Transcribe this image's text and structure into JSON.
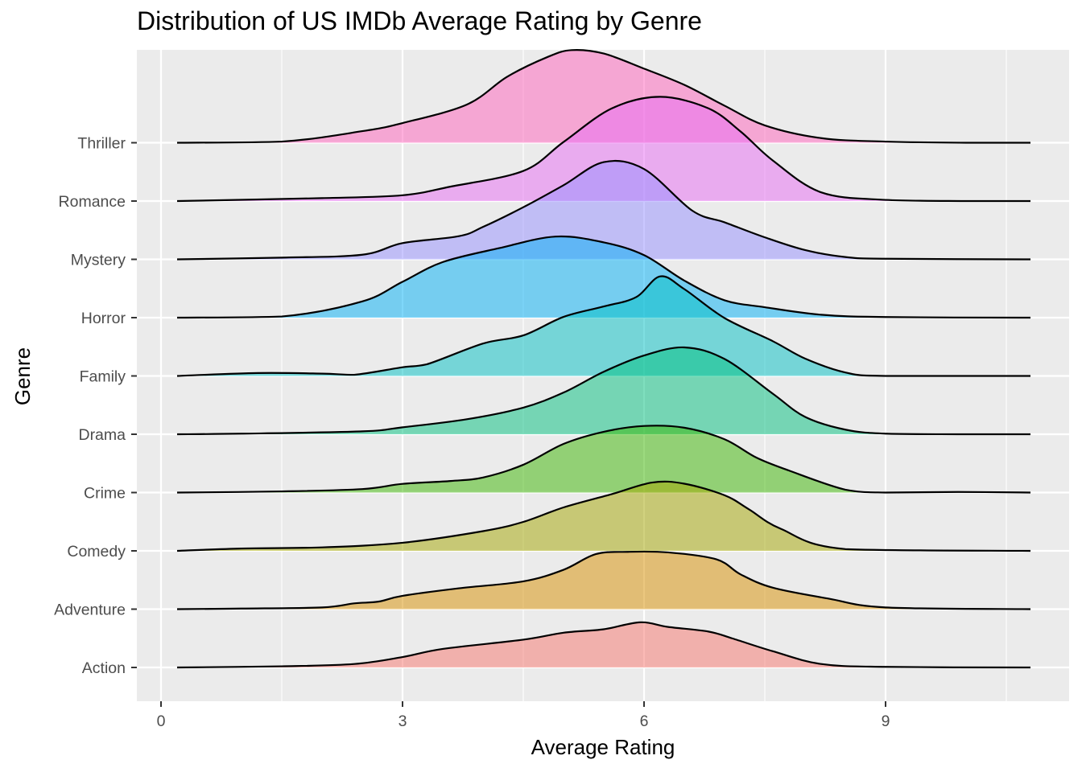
{
  "chart_data": {
    "type": "ridgeline",
    "title": "Distribution of US IMDb Average Rating by Genre",
    "xlabel": "Average Rating",
    "ylabel": "Genre",
    "xlim": [
      -0.3,
      11.3
    ],
    "xticks": [
      0,
      3,
      6,
      9
    ],
    "grid": true,
    "legend": "none",
    "series": [
      {
        "name": "Action",
        "color": "#F8766D",
        "points": [
          [
            0.2,
            0.0
          ],
          [
            1.5,
            0.02
          ],
          [
            2.4,
            0.06
          ],
          [
            3.0,
            0.18
          ],
          [
            3.5,
            0.32
          ],
          [
            4.5,
            0.48
          ],
          [
            5.0,
            0.6
          ],
          [
            5.5,
            0.66
          ],
          [
            5.95,
            0.78
          ],
          [
            6.3,
            0.7
          ],
          [
            6.8,
            0.62
          ],
          [
            7.1,
            0.5
          ],
          [
            7.6,
            0.28
          ],
          [
            8.2,
            0.06
          ],
          [
            9.0,
            0.01
          ],
          [
            10.8,
            0.0
          ]
        ]
      },
      {
        "name": "Adventure",
        "color": "#D89000",
        "points": [
          [
            0.2,
            0.0
          ],
          [
            1.0,
            0.01
          ],
          [
            2.0,
            0.03
          ],
          [
            2.4,
            0.1
          ],
          [
            2.7,
            0.13
          ],
          [
            3.0,
            0.23
          ],
          [
            3.7,
            0.36
          ],
          [
            4.5,
            0.48
          ],
          [
            5.0,
            0.68
          ],
          [
            5.4,
            0.95
          ],
          [
            5.8,
            0.99
          ],
          [
            6.3,
            0.98
          ],
          [
            6.9,
            0.86
          ],
          [
            7.2,
            0.6
          ],
          [
            7.6,
            0.37
          ],
          [
            8.3,
            0.18
          ],
          [
            9.0,
            0.03
          ],
          [
            10.8,
            0.0
          ]
        ]
      },
      {
        "name": "Comedy",
        "color": "#A3A500",
        "points": [
          [
            0.2,
            0.0
          ],
          [
            1.0,
            0.04
          ],
          [
            2.0,
            0.06
          ],
          [
            3.0,
            0.14
          ],
          [
            4.0,
            0.34
          ],
          [
            4.5,
            0.5
          ],
          [
            5.0,
            0.75
          ],
          [
            5.6,
            0.98
          ],
          [
            6.1,
            1.18
          ],
          [
            6.5,
            1.16
          ],
          [
            7.0,
            0.96
          ],
          [
            7.3,
            0.72
          ],
          [
            7.7,
            0.38
          ],
          [
            8.5,
            0.03
          ],
          [
            10.8,
            0.0
          ]
        ]
      },
      {
        "name": "Crime",
        "color": "#39B600",
        "points": [
          [
            0.2,
            0.0
          ],
          [
            1.5,
            0.02
          ],
          [
            2.5,
            0.06
          ],
          [
            3.0,
            0.15
          ],
          [
            3.6,
            0.2
          ],
          [
            4.0,
            0.26
          ],
          [
            4.5,
            0.48
          ],
          [
            5.0,
            0.84
          ],
          [
            5.5,
            1.05
          ],
          [
            6.0,
            1.15
          ],
          [
            6.5,
            1.12
          ],
          [
            7.0,
            0.92
          ],
          [
            7.4,
            0.6
          ],
          [
            7.8,
            0.38
          ],
          [
            8.5,
            0.05
          ],
          [
            9.0,
            0.0
          ],
          [
            9.9,
            0.01
          ],
          [
            10.8,
            0.0
          ]
        ]
      },
      {
        "name": "Drama",
        "color": "#00BF7D",
        "points": [
          [
            0.2,
            0.0
          ],
          [
            1.0,
            0.01
          ],
          [
            2.5,
            0.05
          ],
          [
            3.0,
            0.12
          ],
          [
            3.8,
            0.26
          ],
          [
            4.5,
            0.46
          ],
          [
            5.0,
            0.72
          ],
          [
            5.5,
            1.08
          ],
          [
            6.0,
            1.36
          ],
          [
            6.5,
            1.5
          ],
          [
            7.0,
            1.3
          ],
          [
            7.6,
            0.7
          ],
          [
            8.0,
            0.3
          ],
          [
            8.5,
            0.08
          ],
          [
            9.0,
            0.01
          ],
          [
            9.9,
            0.0
          ],
          [
            10.8,
            0.0
          ]
        ]
      },
      {
        "name": "Family",
        "color": "#00BFC4",
        "points": [
          [
            0.2,
            0.0
          ],
          [
            1.2,
            0.05
          ],
          [
            2.0,
            0.04
          ],
          [
            2.4,
            0.02
          ],
          [
            3.0,
            0.15
          ],
          [
            3.3,
            0.2
          ],
          [
            4.0,
            0.56
          ],
          [
            4.5,
            0.7
          ],
          [
            5.0,
            1.02
          ],
          [
            5.5,
            1.2
          ],
          [
            5.9,
            1.36
          ],
          [
            6.2,
            1.72
          ],
          [
            6.5,
            1.5
          ],
          [
            7.0,
            1.0
          ],
          [
            7.6,
            0.6
          ],
          [
            8.0,
            0.3
          ],
          [
            8.5,
            0.06
          ],
          [
            9.0,
            0.0
          ],
          [
            10.8,
            0.0
          ]
        ]
      },
      {
        "name": "Horror",
        "color": "#00B0F6",
        "points": [
          [
            0.2,
            0.0
          ],
          [
            1.5,
            0.02
          ],
          [
            2.5,
            0.28
          ],
          [
            3.0,
            0.62
          ],
          [
            3.5,
            0.96
          ],
          [
            4.2,
            1.2
          ],
          [
            4.9,
            1.4
          ],
          [
            5.5,
            1.3
          ],
          [
            6.0,
            1.08
          ],
          [
            6.5,
            0.64
          ],
          [
            7.0,
            0.3
          ],
          [
            7.5,
            0.18
          ],
          [
            8.2,
            0.05
          ],
          [
            9.0,
            0.01
          ],
          [
            10.8,
            0.0
          ]
        ]
      },
      {
        "name": "Mystery",
        "color": "#9590FF",
        "points": [
          [
            0.2,
            0.0
          ],
          [
            1.5,
            0.03
          ],
          [
            2.5,
            0.08
          ],
          [
            3.0,
            0.28
          ],
          [
            3.7,
            0.4
          ],
          [
            4.0,
            0.56
          ],
          [
            4.5,
            0.9
          ],
          [
            5.0,
            1.28
          ],
          [
            5.5,
            1.68
          ],
          [
            6.0,
            1.56
          ],
          [
            6.6,
            0.84
          ],
          [
            7.0,
            0.64
          ],
          [
            7.5,
            0.38
          ],
          [
            8.0,
            0.16
          ],
          [
            8.5,
            0.04
          ],
          [
            9.0,
            0.01
          ],
          [
            10.8,
            0.0
          ]
        ]
      },
      {
        "name": "Romance",
        "color": "#E76BF3",
        "points": [
          [
            0.2,
            0.0
          ],
          [
            2.0,
            0.05
          ],
          [
            3.0,
            0.1
          ],
          [
            3.6,
            0.25
          ],
          [
            4.5,
            0.52
          ],
          [
            5.0,
            1.02
          ],
          [
            5.6,
            1.6
          ],
          [
            6.2,
            1.8
          ],
          [
            6.8,
            1.6
          ],
          [
            7.2,
            1.2
          ],
          [
            7.6,
            0.7
          ],
          [
            8.2,
            0.15
          ],
          [
            9.0,
            0.02
          ],
          [
            10.0,
            0.0
          ],
          [
            10.8,
            0.0
          ]
        ]
      },
      {
        "name": "Thriller",
        "color": "#FF62BC",
        "points": [
          [
            0.2,
            0.0
          ],
          [
            1.5,
            0.02
          ],
          [
            2.5,
            0.2
          ],
          [
            3.0,
            0.34
          ],
          [
            3.8,
            0.66
          ],
          [
            4.3,
            1.14
          ],
          [
            4.8,
            1.48
          ],
          [
            5.1,
            1.6
          ],
          [
            5.5,
            1.54
          ],
          [
            6.0,
            1.28
          ],
          [
            6.5,
            1.0
          ],
          [
            7.0,
            0.64
          ],
          [
            7.5,
            0.3
          ],
          [
            8.2,
            0.08
          ],
          [
            9.0,
            0.02
          ],
          [
            10.0,
            0.0
          ],
          [
            10.8,
            0.0
          ]
        ]
      }
    ]
  }
}
